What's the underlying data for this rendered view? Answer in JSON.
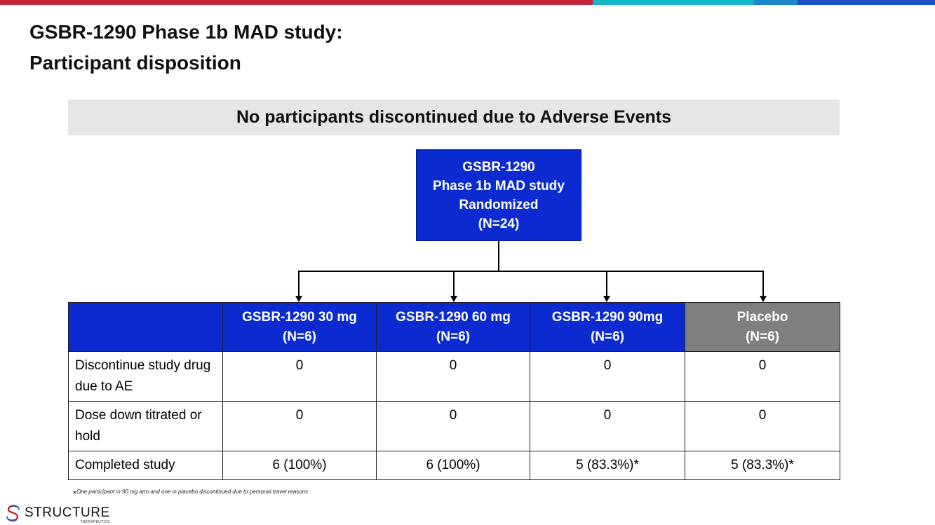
{
  "colors": {
    "top_bar": [
      "#c8253a",
      "#13b5c6",
      "#1b88c9",
      "#1c4fbf"
    ],
    "blue": "#0b2bd0",
    "placebo_gray": "#7f7f7f",
    "banner_gray": "#e6e6e6",
    "logo_red": "#c8253a"
  },
  "title": {
    "line1": "GSBR-1290 Phase 1b MAD study:",
    "line2": "Participant disposition"
  },
  "banner": "No participants discontinued due to Adverse Events",
  "root_box": {
    "line1": "GSBR-1290",
    "line2": "Phase 1b MAD study",
    "line3": "Randomized",
    "line4": "(N=24)"
  },
  "table": {
    "columns": [
      {
        "name": "GSBR-1290 30 mg",
        "n": "(N=6)"
      },
      {
        "name": "GSBR-1290 60 mg",
        "n": "(N=6)"
      },
      {
        "name": "GSBR-1290 90mg",
        "n": "(N=6)"
      },
      {
        "name": "Placebo",
        "n": "(N=6)"
      }
    ],
    "rows": [
      {
        "label": "Discontinue study drug due to AE",
        "values": [
          "0",
          "0",
          "0",
          "0"
        ]
      },
      {
        "label": "Dose down titrated or hold",
        "values": [
          "0",
          "0",
          "0",
          "0"
        ]
      },
      {
        "label": "Completed study",
        "values": [
          "6 (100%)",
          "6 (100%)",
          "5 (83.3%)*",
          "5 (83.3%)*"
        ]
      }
    ]
  },
  "footnote": {
    "marker": "*",
    "text": "One participant in 90 mg arm and one in placebo discontinued due to personal travel reasons"
  },
  "logo": {
    "icon": "structure-s-logo-icon",
    "name": "STRUCTURE",
    "sub": "THERAPEUTICS"
  }
}
